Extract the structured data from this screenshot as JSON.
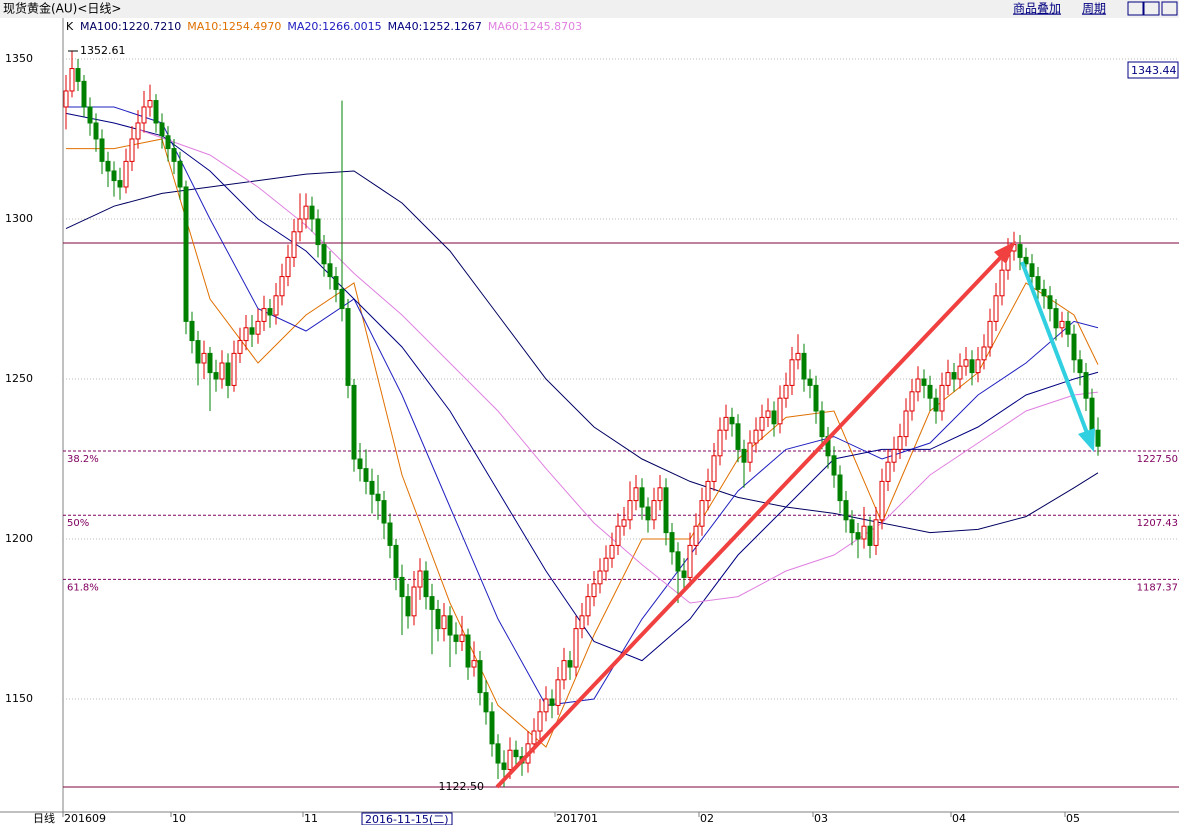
{
  "toolbar": {
    "title": "现货黄金(AU)<日线>",
    "buttons": [
      "商品叠加",
      "周期"
    ],
    "corner_label": "日线"
  },
  "chart_data": {
    "type": "candlestick",
    "title": "K",
    "xlim": [
      -0.5,
      185.5
    ],
    "ylim": [
      1114.7,
      1362.8
    ],
    "yticks": [
      1150,
      1200,
      1250,
      1300,
      1350
    ],
    "grid": true,
    "xticks": [
      {
        "value": 0,
        "label": "201609"
      },
      {
        "value": 18,
        "label": "10"
      },
      {
        "value": 40,
        "label": "11"
      },
      {
        "value": 82,
        "label": "201701"
      },
      {
        "value": 106,
        "label": "02"
      },
      {
        "value": 125,
        "label": "03"
      },
      {
        "value": 148,
        "label": "04"
      },
      {
        "value": 167,
        "label": "05"
      }
    ],
    "up_color": "#e00000",
    "down_color": "#008000",
    "candles": [
      [
        1335,
        1345,
        1328,
        1340
      ],
      [
        1340,
        1352.61,
        1338,
        1347
      ],
      [
        1347,
        1350,
        1340,
        1343
      ],
      [
        1343,
        1345,
        1332,
        1335
      ],
      [
        1335,
        1338,
        1326,
        1330
      ],
      [
        1330,
        1333,
        1321,
        1325
      ],
      [
        1325,
        1328,
        1314,
        1318
      ],
      [
        1318,
        1321,
        1310,
        1315
      ],
      [
        1315,
        1318,
        1307,
        1312
      ],
      [
        1312,
        1316,
        1306,
        1310
      ],
      [
        1310,
        1322,
        1308,
        1318
      ],
      [
        1318,
        1329,
        1315,
        1325
      ],
      [
        1325,
        1334,
        1322,
        1330
      ],
      [
        1330,
        1340,
        1327,
        1335
      ],
      [
        1335,
        1342,
        1332,
        1337
      ],
      [
        1337,
        1339,
        1327,
        1330
      ],
      [
        1330,
        1333,
        1322,
        1326
      ],
      [
        1326,
        1329,
        1318,
        1322
      ],
      [
        1322,
        1325,
        1314,
        1318
      ],
      [
        1318,
        1321,
        1306,
        1310
      ],
      [
        1310,
        1312,
        1264,
        1268
      ],
      [
        1268,
        1271,
        1258,
        1262
      ],
      [
        1262,
        1265,
        1248,
        1255
      ],
      [
        1255,
        1262,
        1250,
        1258
      ],
      [
        1258,
        1260,
        1240,
        1252
      ],
      [
        1252,
        1256,
        1246,
        1250
      ],
      [
        1250,
        1259,
        1247,
        1255
      ],
      [
        1255,
        1258,
        1244,
        1248
      ],
      [
        1248,
        1262,
        1246,
        1258
      ],
      [
        1258,
        1266,
        1255,
        1262
      ],
      [
        1262,
        1270,
        1259,
        1266
      ],
      [
        1266,
        1270,
        1260,
        1264
      ],
      [
        1264,
        1272,
        1261,
        1268
      ],
      [
        1268,
        1276,
        1265,
        1272
      ],
      [
        1272,
        1275,
        1266,
        1270
      ],
      [
        1270,
        1280,
        1267,
        1276
      ],
      [
        1276,
        1286,
        1273,
        1282
      ],
      [
        1282,
        1292,
        1279,
        1288
      ],
      [
        1288,
        1300,
        1285,
        1296
      ],
      [
        1296,
        1308,
        1293,
        1300
      ],
      [
        1300,
        1308,
        1297,
        1304
      ],
      [
        1304,
        1307,
        1296,
        1300
      ],
      [
        1300,
        1303,
        1288,
        1292
      ],
      [
        1292,
        1295,
        1282,
        1286
      ],
      [
        1286,
        1290,
        1278,
        1282
      ],
      [
        1282,
        1285,
        1274,
        1278
      ],
      [
        1278,
        1337,
        1268,
        1272
      ],
      [
        1272,
        1275,
        1244,
        1248
      ],
      [
        1248,
        1250,
        1221,
        1225
      ],
      [
        1225,
        1230,
        1218,
        1222
      ],
      [
        1222,
        1228,
        1214,
        1218
      ],
      [
        1218,
        1222,
        1208,
        1214
      ],
      [
        1214,
        1220,
        1206,
        1212
      ],
      [
        1212,
        1215,
        1200,
        1205
      ],
      [
        1205,
        1208,
        1194,
        1198
      ],
      [
        1198,
        1200,
        1184,
        1188
      ],
      [
        1188,
        1192,
        1170,
        1182
      ],
      [
        1182,
        1186,
        1172,
        1176
      ],
      [
        1176,
        1190,
        1173,
        1185
      ],
      [
        1185,
        1194,
        1181,
        1190
      ],
      [
        1190,
        1193,
        1178,
        1182
      ],
      [
        1182,
        1186,
        1164,
        1178
      ],
      [
        1178,
        1181,
        1168,
        1172
      ],
      [
        1172,
        1180,
        1168,
        1176
      ],
      [
        1176,
        1179,
        1160,
        1170
      ],
      [
        1170,
        1174,
        1164,
        1168
      ],
      [
        1168,
        1176,
        1165,
        1170
      ],
      [
        1170,
        1172,
        1156,
        1160
      ],
      [
        1160,
        1168,
        1157,
        1162
      ],
      [
        1162,
        1165,
        1148,
        1152
      ],
      [
        1152,
        1156,
        1142,
        1146
      ],
      [
        1146,
        1149,
        1132,
        1136
      ],
      [
        1136,
        1139,
        1125,
        1130
      ],
      [
        1130,
        1134,
        1122.5,
        1128
      ],
      [
        1128,
        1138,
        1125,
        1134
      ],
      [
        1134,
        1137,
        1128,
        1132
      ],
      [
        1132,
        1135,
        1126,
        1130
      ],
      [
        1130,
        1140,
        1127,
        1136
      ],
      [
        1136,
        1144,
        1133,
        1140
      ],
      [
        1140,
        1150,
        1137,
        1146
      ],
      [
        1146,
        1154,
        1143,
        1150
      ],
      [
        1150,
        1153,
        1144,
        1148
      ],
      [
        1148,
        1160,
        1145,
        1156
      ],
      [
        1156,
        1166,
        1153,
        1162
      ],
      [
        1162,
        1165,
        1156,
        1160
      ],
      [
        1160,
        1176,
        1157,
        1172
      ],
      [
        1172,
        1180,
        1169,
        1176
      ],
      [
        1176,
        1186,
        1173,
        1182
      ],
      [
        1182,
        1190,
        1179,
        1186
      ],
      [
        1186,
        1194,
        1183,
        1190
      ],
      [
        1190,
        1198,
        1187,
        1194
      ],
      [
        1194,
        1202,
        1191,
        1198
      ],
      [
        1198,
        1208,
        1195,
        1204
      ],
      [
        1204,
        1210,
        1201,
        1206
      ],
      [
        1206,
        1218,
        1203,
        1212
      ],
      [
        1212,
        1220,
        1209,
        1216
      ],
      [
        1216,
        1219,
        1206,
        1210
      ],
      [
        1210,
        1213,
        1202,
        1206
      ],
      [
        1206,
        1216,
        1203,
        1212
      ],
      [
        1212,
        1220,
        1209,
        1216
      ],
      [
        1216,
        1219,
        1198,
        1202
      ],
      [
        1202,
        1205,
        1192,
        1196
      ],
      [
        1196,
        1199,
        1180,
        1190
      ],
      [
        1190,
        1194,
        1184,
        1188
      ],
      [
        1188,
        1202,
        1185,
        1198
      ],
      [
        1198,
        1208,
        1195,
        1204
      ],
      [
        1204,
        1216,
        1201,
        1212
      ],
      [
        1212,
        1222,
        1209,
        1218
      ],
      [
        1218,
        1230,
        1215,
        1226
      ],
      [
        1226,
        1238,
        1223,
        1234
      ],
      [
        1234,
        1242,
        1231,
        1238
      ],
      [
        1238,
        1241,
        1232,
        1236
      ],
      [
        1236,
        1239,
        1224,
        1228
      ],
      [
        1228,
        1231,
        1216,
        1224
      ],
      [
        1224,
        1234,
        1221,
        1230
      ],
      [
        1230,
        1238,
        1227,
        1234
      ],
      [
        1234,
        1242,
        1231,
        1238
      ],
      [
        1238,
        1244,
        1235,
        1240
      ],
      [
        1240,
        1243,
        1232,
        1236
      ],
      [
        1236,
        1248,
        1233,
        1244
      ],
      [
        1244,
        1252,
        1241,
        1248
      ],
      [
        1248,
        1260,
        1245,
        1256
      ],
      [
        1256,
        1264,
        1253,
        1258
      ],
      [
        1258,
        1261,
        1246,
        1250
      ],
      [
        1250,
        1253,
        1244,
        1248
      ],
      [
        1248,
        1251,
        1236,
        1240
      ],
      [
        1240,
        1243,
        1228,
        1232
      ],
      [
        1232,
        1235,
        1222,
        1226
      ],
      [
        1226,
        1229,
        1216,
        1220
      ],
      [
        1220,
        1223,
        1208,
        1212
      ],
      [
        1212,
        1215,
        1202,
        1206
      ],
      [
        1206,
        1209,
        1198,
        1202
      ],
      [
        1202,
        1205,
        1194,
        1200
      ],
      [
        1200,
        1210,
        1197,
        1204
      ],
      [
        1204,
        1207,
        1194,
        1198
      ],
      [
        1198,
        1210,
        1195,
        1206
      ],
      [
        1206,
        1222,
        1203,
        1218
      ],
      [
        1218,
        1228,
        1215,
        1224
      ],
      [
        1224,
        1232,
        1221,
        1228
      ],
      [
        1228,
        1236,
        1225,
        1232
      ],
      [
        1232,
        1244,
        1229,
        1240
      ],
      [
        1240,
        1250,
        1237,
        1246
      ],
      [
        1246,
        1254,
        1243,
        1250
      ],
      [
        1250,
        1253,
        1244,
        1248
      ],
      [
        1248,
        1251,
        1240,
        1244
      ],
      [
        1244,
        1247,
        1236,
        1240
      ],
      [
        1240,
        1252,
        1237,
        1248
      ],
      [
        1248,
        1256,
        1245,
        1252
      ],
      [
        1252,
        1255,
        1246,
        1250
      ],
      [
        1250,
        1258,
        1247,
        1254
      ],
      [
        1254,
        1260,
        1251,
        1256
      ],
      [
        1256,
        1259,
        1248,
        1252
      ],
      [
        1252,
        1260,
        1249,
        1256
      ],
      [
        1256,
        1264,
        1253,
        1260
      ],
      [
        1260,
        1272,
        1257,
        1268
      ],
      [
        1268,
        1280,
        1265,
        1276
      ],
      [
        1276,
        1288,
        1273,
        1284
      ],
      [
        1284,
        1294,
        1281,
        1290
      ],
      [
        1290,
        1296,
        1287,
        1292
      ],
      [
        1292,
        1295,
        1284,
        1288
      ],
      [
        1288,
        1291,
        1282,
        1286
      ],
      [
        1286,
        1289,
        1278,
        1282
      ],
      [
        1282,
        1285,
        1274,
        1278
      ],
      [
        1278,
        1281,
        1272,
        1276
      ],
      [
        1276,
        1279,
        1268,
        1272
      ],
      [
        1272,
        1275,
        1262,
        1266
      ],
      [
        1266,
        1271,
        1263,
        1268
      ],
      [
        1268,
        1271,
        1260,
        1264
      ],
      [
        1264,
        1267,
        1252,
        1256
      ],
      [
        1256,
        1259,
        1248,
        1252
      ],
      [
        1252,
        1255,
        1240,
        1244
      ],
      [
        1244,
        1247,
        1230,
        1234
      ],
      [
        1234,
        1238,
        1226,
        1229
      ]
    ],
    "series": [
      {
        "name": "MA100:1220.7210",
        "color": "#000060",
        "x": [
          0,
          8,
          16,
          24,
          32,
          40,
          48,
          56,
          64,
          72,
          80,
          88,
          96,
          104,
          112,
          120,
          128,
          136,
          144,
          152,
          160,
          168,
          172
        ],
        "values": [
          1297,
          1304,
          1308,
          1310,
          1312,
          1314,
          1315,
          1305,
          1290,
          1270,
          1250,
          1235,
          1225,
          1218,
          1213,
          1210,
          1208,
          1205,
          1202,
          1203,
          1207,
          1216,
          1220.7
        ]
      },
      {
        "name": "MA10:1254.4970",
        "color": "#e07000",
        "x": [
          0,
          8,
          16,
          24,
          32,
          40,
          48,
          56,
          64,
          72,
          80,
          88,
          96,
          104,
          112,
          120,
          128,
          136,
          144,
          152,
          160,
          168,
          172
        ],
        "values": [
          1322,
          1322,
          1325,
          1275,
          1255,
          1270,
          1280,
          1220,
          1180,
          1148,
          1135,
          1170,
          1200,
          1200,
          1225,
          1238,
          1240,
          1205,
          1240,
          1252,
          1280,
          1270,
          1254.5
        ]
      },
      {
        "name": "MA20:1266.0015",
        "color": "#2020c0",
        "x": [
          0,
          8,
          16,
          24,
          32,
          40,
          48,
          56,
          64,
          72,
          80,
          88,
          96,
          104,
          112,
          120,
          128,
          136,
          144,
          152,
          160,
          168,
          172
        ],
        "values": [
          1335,
          1335,
          1330,
          1300,
          1272,
          1265,
          1275,
          1245,
          1210,
          1175,
          1148,
          1150,
          1175,
          1195,
          1215,
          1228,
          1232,
          1225,
          1230,
          1245,
          1255,
          1268,
          1266
        ]
      },
      {
        "name": "MA40:1252.1267",
        "color": "#000080",
        "x": [
          0,
          8,
          16,
          24,
          32,
          40,
          48,
          56,
          64,
          72,
          80,
          88,
          96,
          104,
          112,
          120,
          128,
          136,
          144,
          152,
          160,
          168,
          172
        ],
        "values": [
          1333,
          1330,
          1326,
          1315,
          1300,
          1290,
          1275,
          1260,
          1240,
          1215,
          1190,
          1168,
          1162,
          1175,
          1195,
          1210,
          1225,
          1228,
          1228,
          1235,
          1245,
          1250,
          1252.1
        ]
      },
      {
        "name": "MA60:1245.8703",
        "color": "#e080e0",
        "x": [
          12,
          24,
          32,
          40,
          48,
          56,
          64,
          72,
          80,
          88,
          96,
          104,
          112,
          120,
          128,
          136,
          144,
          152,
          160,
          168,
          172
        ],
        "values": [
          1328,
          1320,
          1310,
          1298,
          1283,
          1270,
          1255,
          1240,
          1222,
          1205,
          1192,
          1180,
          1182,
          1190,
          1195,
          1205,
          1220,
          1230,
          1240,
          1245,
          1245.9
        ]
      }
    ],
    "hlines": [
      1292.5,
      1122.5
    ],
    "levels": {
      "labels": [
        "38.2%",
        "50%",
        "61.8%"
      ],
      "values": [
        1227.5,
        1207.43,
        1187.37
      ],
      "value_labels": [
        "1227.50",
        "1207.43",
        "1187.37"
      ]
    },
    "annotations": {
      "high": "1352.61",
      "low": "1122.50",
      "cursor_price": "1343.44",
      "cursor_date": "2016-11-15(二)"
    }
  }
}
